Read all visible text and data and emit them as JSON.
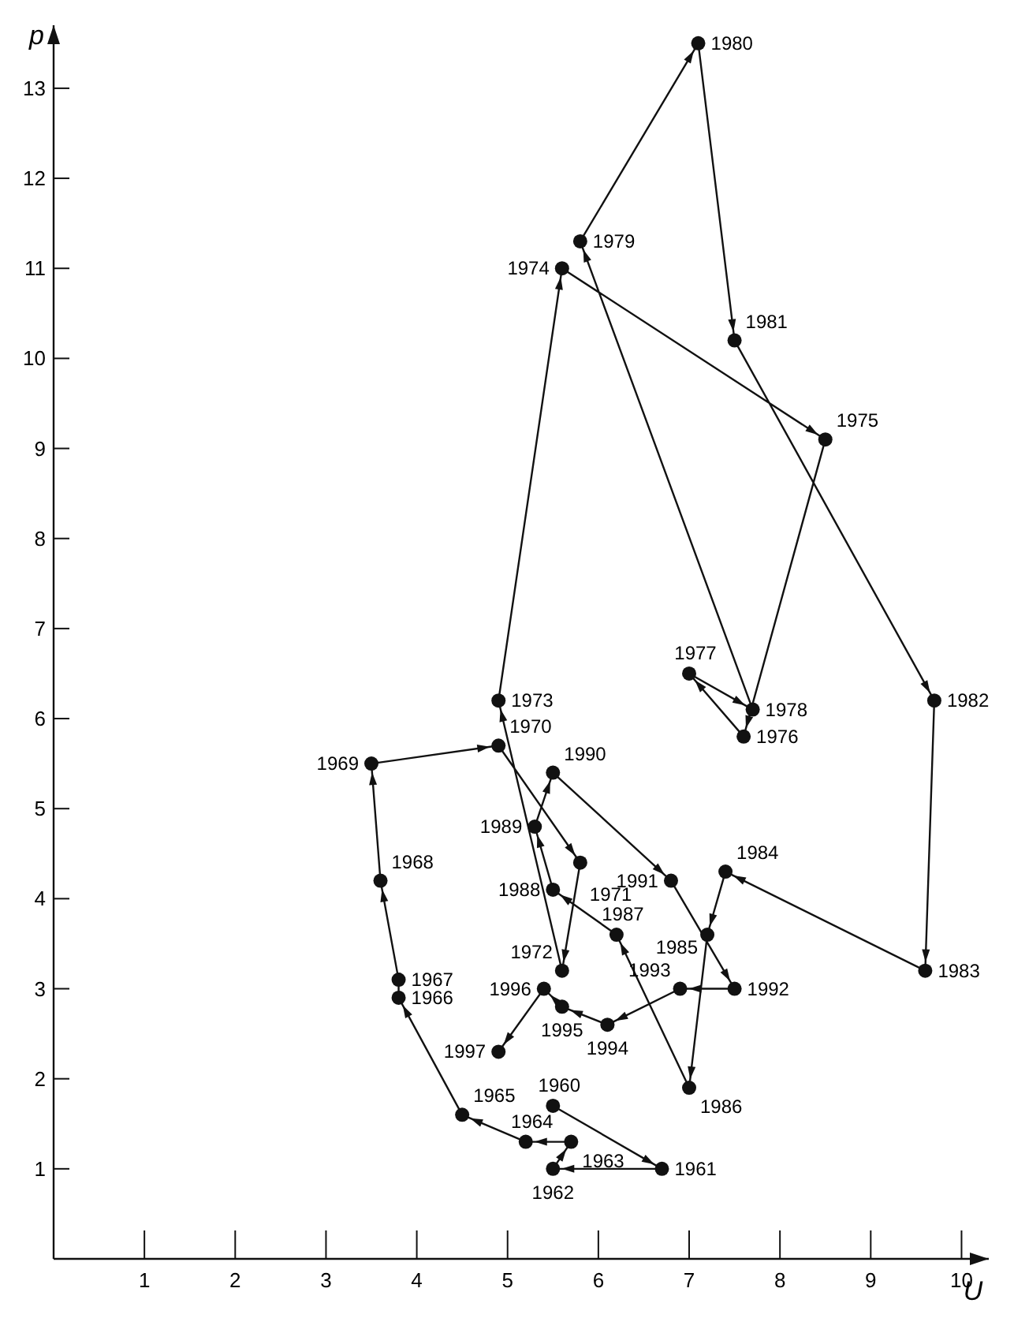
{
  "chart_data": {
    "type": "line",
    "xlabel": "U",
    "ylabel": "p",
    "marker": "circle",
    "line_style": "solid",
    "color": "#111111",
    "x": [
      5.5,
      6.7,
      5.5,
      5.7,
      5.2,
      4.5,
      3.8,
      3.8,
      3.6,
      3.5,
      4.9,
      5.8,
      5.6,
      4.9,
      5.6,
      8.5,
      7.6,
      7.0,
      7.7,
      5.8,
      7.1,
      7.5,
      9.7,
      9.6,
      7.4,
      7.2,
      7.0,
      6.2,
      5.5,
      5.3,
      5.5,
      6.8,
      7.5,
      6.9,
      6.1,
      5.6,
      5.4,
      4.9
    ],
    "values": [
      1.7,
      1.0,
      1.0,
      1.3,
      1.3,
      1.6,
      2.9,
      3.1,
      4.2,
      5.5,
      5.7,
      4.4,
      3.2,
      6.2,
      11.0,
      9.1,
      5.8,
      6.5,
      6.1,
      11.3,
      13.5,
      10.2,
      6.2,
      3.2,
      4.3,
      3.6,
      1.9,
      3.6,
      4.1,
      4.8,
      5.4,
      4.2,
      3.0,
      3.0,
      2.6,
      2.8,
      3.0,
      2.3
    ],
    "annotations": [
      {
        "text": "1960",
        "x": 5.5,
        "y": 1.7
      },
      {
        "text": "1961",
        "x": 6.7,
        "y": 1.0
      },
      {
        "text": "1962",
        "x": 5.5,
        "y": 1.0
      },
      {
        "text": "1963",
        "x": 5.7,
        "y": 1.3
      },
      {
        "text": "1964",
        "x": 5.2,
        "y": 1.3
      },
      {
        "text": "1965",
        "x": 4.5,
        "y": 1.6
      },
      {
        "text": "1966",
        "x": 3.8,
        "y": 2.9
      },
      {
        "text": "1967",
        "x": 3.8,
        "y": 3.1
      },
      {
        "text": "1968",
        "x": 3.6,
        "y": 4.2
      },
      {
        "text": "1969",
        "x": 3.5,
        "y": 5.5
      },
      {
        "text": "1970",
        "x": 4.9,
        "y": 5.7
      },
      {
        "text": "1971",
        "x": 5.8,
        "y": 4.4
      },
      {
        "text": "1972",
        "x": 5.6,
        "y": 3.2
      },
      {
        "text": "1973",
        "x": 4.9,
        "y": 6.2
      },
      {
        "text": "1974",
        "x": 5.6,
        "y": 11.0
      },
      {
        "text": "1975",
        "x": 8.5,
        "y": 9.1
      },
      {
        "text": "1976",
        "x": 7.6,
        "y": 5.8
      },
      {
        "text": "1977",
        "x": 7.0,
        "y": 6.5
      },
      {
        "text": "1978",
        "x": 7.7,
        "y": 6.1
      },
      {
        "text": "1979",
        "x": 5.8,
        "y": 11.3
      },
      {
        "text": "1980",
        "x": 7.1,
        "y": 13.5
      },
      {
        "text": "1981",
        "x": 7.5,
        "y": 10.2
      },
      {
        "text": "1982",
        "x": 9.7,
        "y": 6.2
      },
      {
        "text": "1983",
        "x": 9.6,
        "y": 3.2
      },
      {
        "text": "1984",
        "x": 7.4,
        "y": 4.3
      },
      {
        "text": "1985",
        "x": 7.2,
        "y": 3.6
      },
      {
        "text": "1986",
        "x": 7.0,
        "y": 1.9
      },
      {
        "text": "1987",
        "x": 6.2,
        "y": 3.6
      },
      {
        "text": "1988",
        "x": 5.5,
        "y": 4.1
      },
      {
        "text": "1989",
        "x": 5.3,
        "y": 4.8
      },
      {
        "text": "1990",
        "x": 5.5,
        "y": 5.4
      },
      {
        "text": "1991",
        "x": 6.8,
        "y": 4.2
      },
      {
        "text": "1992",
        "x": 7.5,
        "y": 3.0
      },
      {
        "text": "1993",
        "x": 6.9,
        "y": 3.0
      },
      {
        "text": "1994",
        "x": 6.1,
        "y": 2.6
      },
      {
        "text": "1995",
        "x": 5.6,
        "y": 2.8
      },
      {
        "text": "1996",
        "x": 5.4,
        "y": 3.0
      },
      {
        "text": "1997",
        "x": 4.9,
        "y": 2.3
      }
    ],
    "xlim": [
      0,
      10.3
    ],
    "ylim": [
      0,
      13.7
    ],
    "xticks": [
      1,
      2,
      3,
      4,
      5,
      6,
      7,
      8,
      9,
      10
    ],
    "yticks": [
      1,
      2,
      3,
      4,
      5,
      6,
      7,
      8,
      9,
      10,
      11,
      12,
      13
    ]
  }
}
